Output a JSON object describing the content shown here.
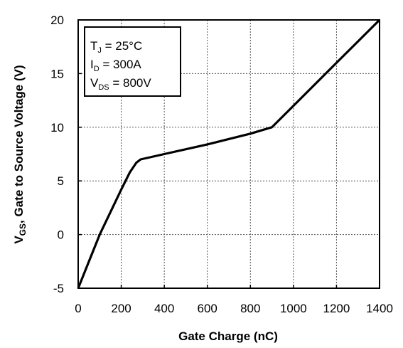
{
  "chart_data": {
    "type": "line",
    "xlabel": "Gate Charge (nC)",
    "ylabel": {
      "main": "V",
      "sub": "GS",
      "rest": ", Gate to Source Voltage (V)"
    },
    "xlim": [
      0,
      1400
    ],
    "ylim": [
      -5,
      20
    ],
    "x_ticks": [
      0,
      200,
      400,
      600,
      800,
      1000,
      1200,
      1400
    ],
    "y_ticks": [
      -5,
      0,
      5,
      10,
      15,
      20
    ],
    "x_tick_labels": [
      "0",
      "200",
      "400",
      "600",
      "800",
      "1000",
      "1200",
      "1400"
    ],
    "y_tick_labels": [
      "-5",
      "0",
      "5",
      "10",
      "15",
      "20"
    ],
    "grid": true,
    "series": [
      {
        "x": [
          0,
          100,
          200,
          240,
          270,
          290,
          400,
          600,
          800,
          900,
          1000,
          1200,
          1400
        ],
        "y": [
          -5,
          0,
          4.2,
          5.8,
          6.7,
          7.0,
          7.5,
          8.4,
          9.4,
          10.0,
          12.0,
          16.0,
          20.0
        ],
        "color": "#000000"
      }
    ],
    "annotations": [
      {
        "main": "T",
        "sub": "J",
        "rest": " = 25°C"
      },
      {
        "main": "I",
        "sub": "D",
        "rest": " = 300A"
      },
      {
        "main": "V",
        "sub": "DS",
        "rest": " = 800V"
      }
    ],
    "annotation_position": "top-left"
  }
}
